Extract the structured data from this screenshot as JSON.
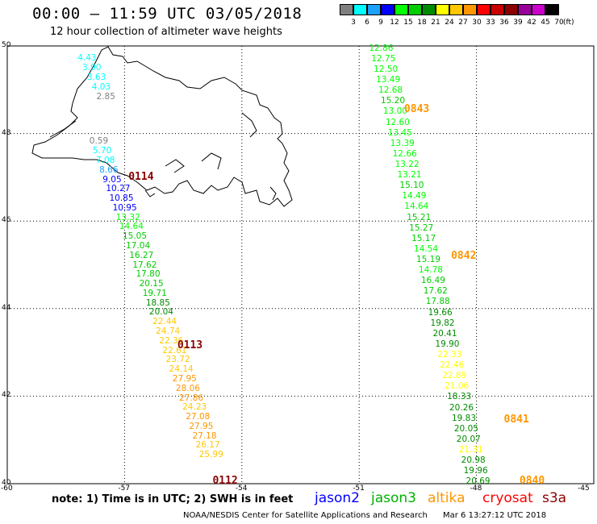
{
  "header": {
    "title": "00:00 – 11:59 UTC 03/05/2018",
    "subtitle": "12 hour collection of altimeter wave heights"
  },
  "legend": {
    "units": "(ft)",
    "bins": [
      {
        "label": "3",
        "color": "#808080"
      },
      {
        "label": "6",
        "color": "#00ffff"
      },
      {
        "label": "9",
        "color": "#1ea0ff"
      },
      {
        "label": "12",
        "color": "#0000ff"
      },
      {
        "label": "15",
        "color": "#00ff00"
      },
      {
        "label": "18",
        "color": "#00cc00"
      },
      {
        "label": "21",
        "color": "#008c00"
      },
      {
        "label": "24",
        "color": "#ffff00"
      },
      {
        "label": "27",
        "color": "#ffc800"
      },
      {
        "label": "30",
        "color": "#ff9600"
      },
      {
        "label": "33",
        "color": "#ff0000"
      },
      {
        "label": "36",
        "color": "#c80000"
      },
      {
        "label": "39",
        "color": "#8b0000"
      },
      {
        "label": "42",
        "color": "#990099"
      },
      {
        "label": "45",
        "color": "#cc00cc"
      },
      {
        "label": "70",
        "color": "#000000"
      }
    ]
  },
  "axes": {
    "lat_ticks": [
      "50",
      "48",
      "46",
      "44",
      "42",
      "40"
    ],
    "lon_ticks": [
      "-60",
      "-57",
      "-54",
      "-51",
      "-48",
      "-45"
    ],
    "lat_range": [
      40,
      50
    ],
    "lon_range": [
      -60,
      -45
    ]
  },
  "tracks": [
    {
      "points": [
        {
          "v": "4.43",
          "c": "#00ffff"
        },
        {
          "v": "3.90",
          "c": "#00ffff"
        },
        {
          "v": "3.63",
          "c": "#00ffff"
        },
        {
          "v": "4.03",
          "c": "#00ffff"
        },
        {
          "v": "2.85",
          "c": "#808080"
        }
      ],
      "lat_start": 49.72,
      "lat_step": -0.22,
      "lon_start": -58.2,
      "lon_step": 0.12
    },
    {
      "points": [
        {
          "v": "0.59",
          "c": "#808080"
        },
        {
          "v": "5.70",
          "c": "#00ffff"
        },
        {
          "v": "7.08",
          "c": "#00ffff"
        },
        {
          "v": "8.66",
          "c": "#1ea0ff"
        },
        {
          "v": "9.05",
          "c": "#0000ff"
        },
        {
          "v": "10.27",
          "c": "#0000ff"
        },
        {
          "v": "10.85",
          "c": "#0000ff"
        },
        {
          "v": "10.95",
          "c": "#0000ff"
        },
        {
          "v": "13.32",
          "c": "#00ff00"
        },
        {
          "v": "14.64",
          "c": "#00ff00"
        },
        {
          "v": "15.05",
          "c": "#00cc00"
        },
        {
          "v": "17.04",
          "c": "#00cc00"
        },
        {
          "v": "16.27",
          "c": "#00cc00"
        },
        {
          "v": "17.62",
          "c": "#00cc00"
        },
        {
          "v": "17.80",
          "c": "#00cc00"
        },
        {
          "v": "20.15",
          "c": "#00cc00"
        },
        {
          "v": "19.71",
          "c": "#00cc00"
        },
        {
          "v": "18.85",
          "c": "#008c00"
        },
        {
          "v": "20.04",
          "c": "#008c00"
        },
        {
          "v": "22.44",
          "c": "#ffc800"
        },
        {
          "v": "24.74",
          "c": "#ffc800"
        },
        {
          "v": "22.36",
          "c": "#ffc800"
        },
        {
          "v": "22.61",
          "c": "#ffc800"
        },
        {
          "v": "23.72",
          "c": "#ffc800"
        },
        {
          "v": "24.14",
          "c": "#ffc800"
        },
        {
          "v": "27.95",
          "c": "#ff9600"
        },
        {
          "v": "28.06",
          "c": "#ff9600"
        },
        {
          "v": "27.86",
          "c": "#ff9600"
        },
        {
          "v": "24.23",
          "c": "#ffc800"
        },
        {
          "v": "27.08",
          "c": "#ff9600"
        },
        {
          "v": "27.95",
          "c": "#ff9600"
        },
        {
          "v": "27.18",
          "c": "#ff9600"
        },
        {
          "v": "26.17",
          "c": "#ffc800"
        },
        {
          "v": "25.99",
          "c": "#ffc800"
        }
      ],
      "lat_start": 47.82,
      "lat_step": -0.217,
      "lon_start": -57.9,
      "lon_step": 0.085
    },
    {
      "points": [
        {
          "v": "12.86",
          "c": "#00ff00"
        },
        {
          "v": "12.75",
          "c": "#00ff00"
        },
        {
          "v": "12.50",
          "c": "#00ff00"
        },
        {
          "v": "13.49",
          "c": "#00ff00"
        },
        {
          "v": "12.68",
          "c": "#00ff00"
        },
        {
          "v": "15.20",
          "c": "#00cc00"
        },
        {
          "v": "13.00",
          "c": "#00ff00"
        },
        {
          "v": "12.60",
          "c": "#00ff00"
        },
        {
          "v": "13.45",
          "c": "#00ff00"
        },
        {
          "v": "13.39",
          "c": "#00ff00"
        },
        {
          "v": "12.66",
          "c": "#00ff00"
        },
        {
          "v": "13.22",
          "c": "#00ff00"
        },
        {
          "v": "13.21",
          "c": "#00ff00"
        },
        {
          "v": "15.10",
          "c": "#00cc00"
        },
        {
          "v": "14.49",
          "c": "#00ff00"
        },
        {
          "v": "14.64",
          "c": "#00ff00"
        },
        {
          "v": "15.21",
          "c": "#00cc00"
        },
        {
          "v": "15.27",
          "c": "#00cc00"
        },
        {
          "v": "15.17",
          "c": "#00cc00"
        },
        {
          "v": "14.54",
          "c": "#00ff00"
        },
        {
          "v": "15.19",
          "c": "#00cc00"
        },
        {
          "v": "14.78",
          "c": "#00ff00"
        },
        {
          "v": "16.49",
          "c": "#00cc00"
        },
        {
          "v": "17.62",
          "c": "#00cc00"
        },
        {
          "v": "17.88",
          "c": "#00cc00"
        },
        {
          "v": "19.66",
          "c": "#008c00"
        },
        {
          "v": "19.82",
          "c": "#008c00"
        },
        {
          "v": "20.41",
          "c": "#008c00"
        },
        {
          "v": "19.90",
          "c": "#008c00"
        },
        {
          "v": "22.33",
          "c": "#ffff00"
        },
        {
          "v": "22.46",
          "c": "#ffff00"
        },
        {
          "v": "22.89",
          "c": "#ffff00"
        },
        {
          "v": "21.06",
          "c": "#ffff00"
        },
        {
          "v": "18.33",
          "c": "#008c00"
        },
        {
          "v": "20.26",
          "c": "#008c00"
        },
        {
          "v": "19.83",
          "c": "#008c00"
        },
        {
          "v": "20.05",
          "c": "#008c00"
        },
        {
          "v": "20.07",
          "c": "#008c00"
        },
        {
          "v": "21.31",
          "c": "#ffff00"
        },
        {
          "v": "20.98",
          "c": "#008c00"
        },
        {
          "v": "19.96",
          "c": "#008c00"
        },
        {
          "v": "20.69",
          "c": "#008c00"
        }
      ],
      "lat_start": 49.95,
      "lat_step": -0.2415,
      "lon_start": -50.75,
      "lon_step": 0.0605
    }
  ],
  "pass_labels": [
    {
      "text": "0843",
      "color": "#ff9600",
      "lat": 48.55,
      "lon": -49.85
    },
    {
      "text": "0842",
      "color": "#ff9600",
      "lat": 45.2,
      "lon": -48.65
    },
    {
      "text": "0841",
      "color": "#ff9600",
      "lat": 41.45,
      "lon": -47.3
    },
    {
      "text": "0840",
      "color": "#ff9600",
      "lat": 40.05,
      "lon": -46.9
    },
    {
      "text": "0114",
      "color": "#8b0000",
      "lat": 47.0,
      "lon": -56.9
    },
    {
      "text": "0113",
      "color": "#8b0000",
      "lat": 43.15,
      "lon": -55.65
    },
    {
      "text": "0112",
      "color": "#8b0000",
      "lat": 40.05,
      "lon": -54.75
    }
  ],
  "footer": {
    "note": "note: 1) Time is in UTC; 2) SWH is in feet",
    "satellites": [
      {
        "name": "jason2",
        "color": "#0000ff"
      },
      {
        "name": "jason3",
        "color": "#00b000"
      },
      {
        "name": "altika",
        "color": "#ff9600"
      },
      {
        "name": "cryosat",
        "color": "#ff0000"
      },
      {
        "name": "s3a",
        "color": "#8b0000"
      }
    ],
    "credit": "NOAA/NESDIS Center for Satellite Applications and Research",
    "timestamp": "Mar  6 13:27:12 UTC 2018"
  }
}
